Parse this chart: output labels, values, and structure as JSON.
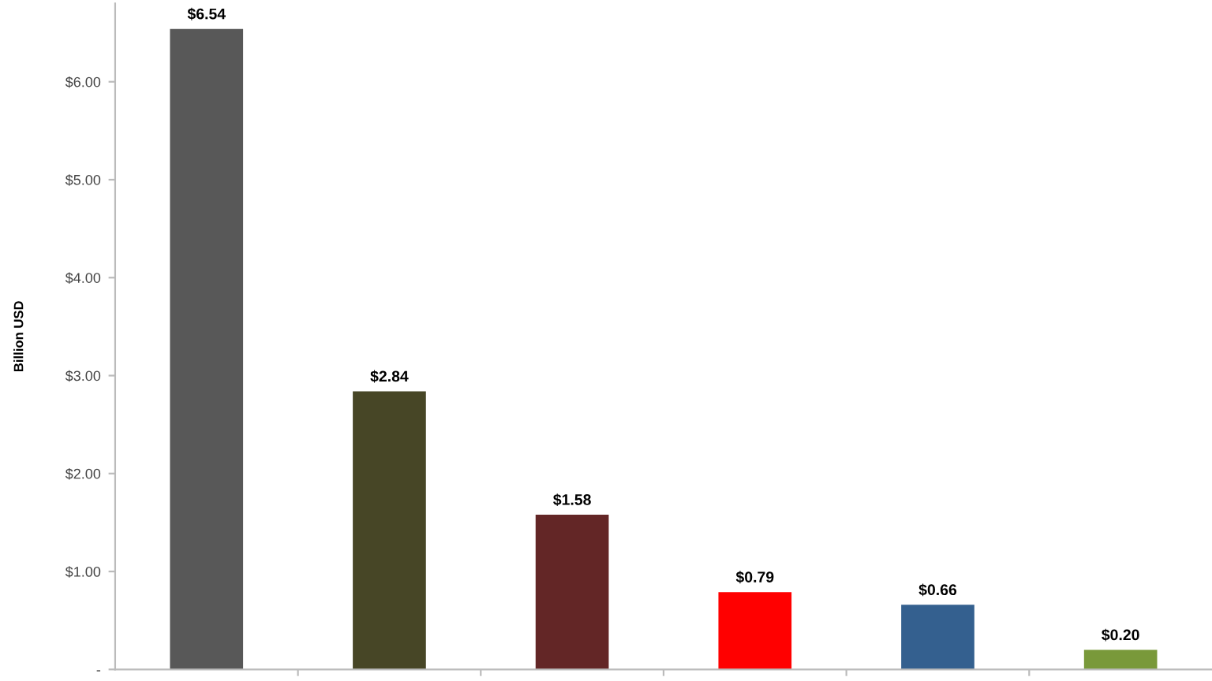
{
  "chart_data": {
    "type": "bar",
    "ylabel": "Billion USD",
    "categories": [
      null,
      null,
      null,
      null,
      null,
      null
    ],
    "values": [
      6.54,
      2.84,
      1.58,
      0.79,
      0.66,
      0.2
    ],
    "colors": [
      "#585858",
      "#474626",
      "#632626",
      "#ff0000",
      "#34608f",
      "#79993a"
    ],
    "value_labels": [
      "$6.54",
      "$2.84",
      "$1.58",
      "$0.79",
      "$0.66",
      "$0.20"
    ],
    "ylim": [
      0,
      6.8
    ],
    "yticks": [
      {
        "value": 0,
        "label": "-"
      },
      {
        "value": 1,
        "label": "$1.00"
      },
      {
        "value": 2,
        "label": "$2.00"
      },
      {
        "value": 3,
        "label": "$3.00"
      },
      {
        "value": 4,
        "label": "$4.00"
      },
      {
        "value": 5,
        "label": "$5.00"
      },
      {
        "value": 6,
        "label": "$6.00"
      }
    ],
    "grid": false,
    "legend": false
  }
}
